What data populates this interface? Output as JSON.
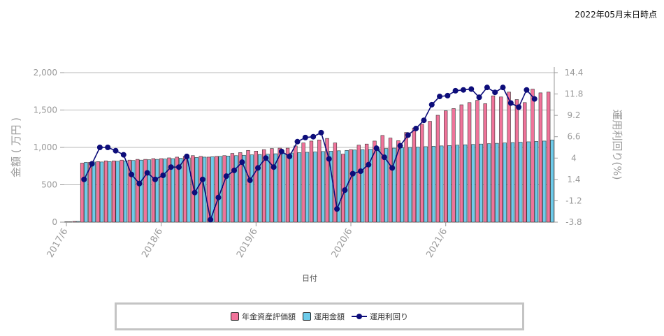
{
  "header": {
    "as_of": "2022年05月末日時点"
  },
  "chart_data": {
    "type": "bar",
    "x_tick_labels": [
      "2017/6",
      "2018/6",
      "2019/6",
      "2020/6",
      "2021/6"
    ],
    "xlabel": "日付",
    "ylabel_left": "金額 ( 万円 )",
    "ylabel_right": "運用利回り(%)",
    "ylim_left": [
      0,
      2000
    ],
    "ylim_right": [
      -3.8,
      14.4
    ],
    "yticks_left": [
      0,
      500,
      1000,
      1500,
      2000
    ],
    "ytick_labels_left": [
      "0",
      "500",
      "1,000",
      "1,500",
      "2,000"
    ],
    "yticks_right": [
      -3.8,
      -1.2,
      1.4,
      4,
      6.6,
      9.2,
      11.8,
      14.4
    ],
    "ytick_labels_right": [
      "-3.8",
      "-1.2",
      "1.4",
      "4",
      "6.6",
      "9.2",
      "11.8",
      "14.4"
    ],
    "grid": true,
    "legend_position": "bottom",
    "colors": {
      "asset": "#f0739a",
      "invested": "#6dcbea",
      "yield": "#0d0d7a"
    },
    "series": [
      {
        "name": "年金資産評価額",
        "type": "bar",
        "values": [
          5,
          10,
          790,
          800,
          810,
          820,
          820,
          830,
          830,
          840,
          840,
          850,
          850,
          860,
          870,
          880,
          890,
          880,
          870,
          880,
          890,
          920,
          930,
          960,
          950,
          970,
          985,
          990,
          990,
          1020,
          1060,
          1085,
          1100,
          1120,
          1060,
          910,
          970,
          1030,
          1045,
          1085,
          1160,
          1125,
          1090,
          1200,
          1260,
          1310,
          1350,
          1430,
          1490,
          1520,
          1570,
          1600,
          1630,
          1585,
          1690,
          1675,
          1740,
          1640,
          1600,
          1780,
          1730,
          1740
        ]
      },
      {
        "name": "運用金額",
        "type": "bar",
        "values": [
          5,
          10,
          800,
          805,
          805,
          810,
          815,
          820,
          825,
          830,
          835,
          840,
          845,
          850,
          855,
          860,
          865,
          870,
          875,
          880,
          885,
          890,
          895,
          900,
          905,
          910,
          915,
          920,
          925,
          930,
          935,
          940,
          945,
          950,
          955,
          960,
          965,
          970,
          975,
          980,
          985,
          990,
          995,
          1000,
          1005,
          1010,
          1015,
          1020,
          1025,
          1030,
          1035,
          1040,
          1045,
          1050,
          1055,
          1060,
          1065,
          1070,
          1075,
          1080,
          1085,
          1100
        ]
      },
      {
        "name": "運用利回り",
        "type": "line",
        "values": [
          null,
          null,
          1.4,
          3.3,
          5.3,
          5.3,
          4.9,
          4.4,
          2.0,
          0.9,
          2.2,
          1.4,
          1.9,
          2.9,
          2.9,
          4.2,
          -0.2,
          1.4,
          -3.5,
          -0.8,
          1.8,
          2.5,
          3.5,
          1.3,
          2.8,
          4.0,
          2.9,
          4.8,
          4.2,
          6.0,
          6.5,
          6.6,
          7.1,
          3.9,
          -2.2,
          0.1,
          2.1,
          2.4,
          3.2,
          5.2,
          4.1,
          2.8,
          5.5,
          6.8,
          7.6,
          8.6,
          10.5,
          11.5,
          11.6,
          12.2,
          12.3,
          12.4,
          11.4,
          12.6,
          12.0,
          12.6,
          10.7,
          10.2,
          12.3,
          11.2,
          null
        ]
      }
    ]
  },
  "legend": {
    "asset_label": "年金資産評価額",
    "invested_label": "運用金額",
    "yield_label": "運用利回り"
  }
}
